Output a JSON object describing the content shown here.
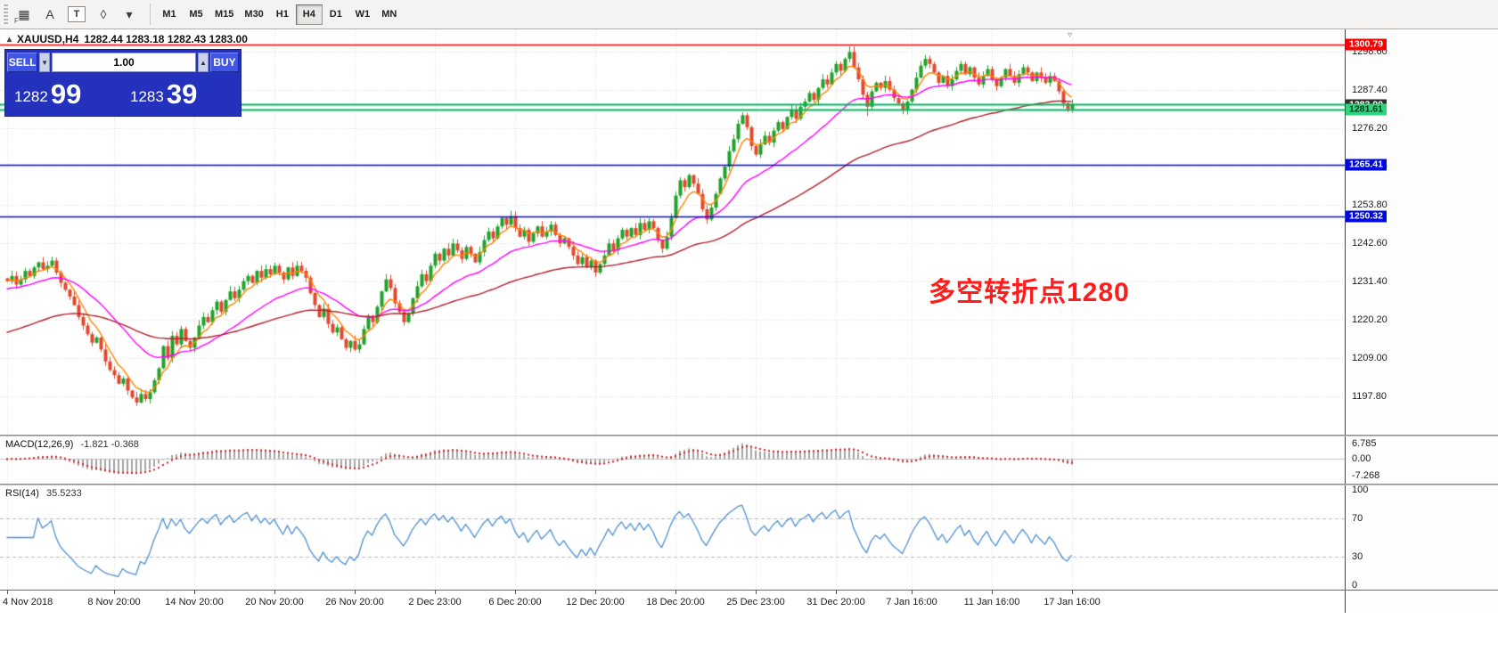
{
  "toolbar": {
    "icons": [
      {
        "name": "fibonacci-tool-icon",
        "glyph": "▦",
        "sub": "F"
      },
      {
        "name": "text-label-tool-icon",
        "glyph": "A"
      },
      {
        "name": "text-tool-icon",
        "glyph": "T",
        "boxed": true
      },
      {
        "name": "shapes-tool-icon",
        "glyph": "◊"
      },
      {
        "name": "shapes-menu-caret-icon",
        "glyph": "▾"
      }
    ],
    "timeframes": [
      "M1",
      "M5",
      "M15",
      "M30",
      "H1",
      "H4",
      "D1",
      "W1",
      "MN"
    ],
    "active_timeframe": "H4"
  },
  "header": {
    "symbol": "XAUUSD,H4",
    "quote": "1282.44 1283.18 1282.43 1283.00"
  },
  "trade_panel": {
    "sell_label": "SELL",
    "buy_label": "BUY",
    "volume": "1.00",
    "sell_big": "1282",
    "sell_large": "99",
    "buy_big": "1283",
    "buy_large": "39"
  },
  "annotation": {
    "text": "多空转折点1280",
    "color": "#ff1c1c"
  },
  "chart_data": {
    "type": "candlestick",
    "title": "XAUUSD,H4",
    "timeframe": "H4",
    "up_color": "#1fa32a",
    "down_color": "#e0482e",
    "y_ticks": [
      "1298.60",
      "1287.40",
      "1276.20",
      "1265.00",
      "1253.80",
      "1242.60",
      "1231.40",
      "1220.20",
      "1209.00",
      "1197.80"
    ],
    "closes": [
      1231.5,
      1233.0,
      1230.5,
      1232.0,
      1234.5,
      1233.0,
      1235.5,
      1237.0,
      1235.0,
      1236.0,
      1237.5,
      1234.0,
      1231.0,
      1229.0,
      1227.0,
      1224.5,
      1221.0,
      1218.5,
      1216.0,
      1213.5,
      1215.0,
      1211.5,
      1208.0,
      1205.5,
      1204.0,
      1201.5,
      1203.0,
      1199.5,
      1197.5,
      1196.0,
      1198.5,
      1197.0,
      1199.0,
      1202.5,
      1206.0,
      1212.5,
      1209.0,
      1215.5,
      1213.0,
      1217.5,
      1214.0,
      1212.0,
      1215.0,
      1218.5,
      1221.0,
      1219.5,
      1223.0,
      1225.5,
      1222.5,
      1226.0,
      1228.5,
      1226.5,
      1229.0,
      1231.5,
      1233.0,
      1231.0,
      1234.5,
      1232.5,
      1235.0,
      1233.5,
      1236.0,
      1234.0,
      1232.0,
      1235.5,
      1233.0,
      1236.0,
      1234.5,
      1232.5,
      1228.0,
      1224.5,
      1221.0,
      1223.5,
      1219.0,
      1216.5,
      1218.0,
      1214.5,
      1212.0,
      1214.0,
      1211.5,
      1213.0,
      1217.5,
      1221.0,
      1219.5,
      1224.0,
      1228.5,
      1232.0,
      1229.5,
      1225.0,
      1222.5,
      1219.5,
      1222.0,
      1226.5,
      1230.0,
      1233.5,
      1231.5,
      1236.0,
      1239.5,
      1237.5,
      1241.0,
      1239.0,
      1242.5,
      1240.5,
      1238.0,
      1241.5,
      1239.5,
      1237.0,
      1240.0,
      1243.5,
      1246.0,
      1244.0,
      1247.5,
      1250.0,
      1248.0,
      1250.5,
      1247.0,
      1244.5,
      1246.5,
      1243.0,
      1245.5,
      1247.5,
      1244.5,
      1246.0,
      1248.0,
      1245.0,
      1242.5,
      1244.0,
      1241.5,
      1239.0,
      1236.5,
      1238.5,
      1235.5,
      1237.5,
      1234.0,
      1236.5,
      1239.0,
      1242.5,
      1240.5,
      1244.0,
      1246.5,
      1244.5,
      1247.0,
      1245.0,
      1248.5,
      1246.5,
      1249.0,
      1247.0,
      1243.5,
      1241.0,
      1244.5,
      1250.0,
      1256.5,
      1261.0,
      1259.0,
      1262.5,
      1260.0,
      1257.0,
      1252.5,
      1249.5,
      1253.0,
      1257.0,
      1261.5,
      1265.0,
      1269.5,
      1273.0,
      1277.5,
      1280.0,
      1276.5,
      1271.0,
      1268.5,
      1271.5,
      1274.0,
      1272.0,
      1275.5,
      1278.0,
      1276.0,
      1279.5,
      1281.5,
      1279.0,
      1282.5,
      1284.0,
      1286.5,
      1284.5,
      1288.0,
      1290.5,
      1289.0,
      1292.5,
      1295.0,
      1293.0,
      1296.5,
      1298.5,
      1294.0,
      1290.5,
      1286.0,
      1282.5,
      1287.0,
      1289.5,
      1288.0,
      1290.0,
      1287.5,
      1285.0,
      1283.5,
      1281.5,
      1284.0,
      1287.5,
      1291.0,
      1294.5,
      1296.5,
      1295.0,
      1292.5,
      1289.5,
      1291.5,
      1288.5,
      1290.5,
      1293.0,
      1295.0,
      1292.0,
      1294.0,
      1291.0,
      1289.0,
      1291.5,
      1293.5,
      1290.5,
      1288.5,
      1291.0,
      1293.5,
      1291.5,
      1289.5,
      1292.0,
      1294.0,
      1292.5,
      1290.0,
      1292.5,
      1291.0,
      1289.5,
      1291.5,
      1290.0,
      1287.0,
      1283.5,
      1281.8,
      1283.0
    ],
    "wick_overrides": {
      "29": {
        "l": 1195.0
      },
      "189": {
        "h": 1300.2
      },
      "193": {
        "l": 1279.8
      },
      "201": {
        "l": 1280.3
      },
      "238": {
        "l": 1280.9
      }
    },
    "moving_averages": [
      {
        "period": 6,
        "color": "#ff8400",
        "seed": 1231.5
      },
      {
        "period": 24,
        "color": "#ff00ff",
        "seed": 1229.0
      },
      {
        "period": 70,
        "color": "#b01e28",
        "seed": 1216.0
      }
    ],
    "x_labels": [
      {
        "label": "4 Nov 2018",
        "i": 0
      },
      {
        "label": "8 Nov 20:00",
        "i": 24
      },
      {
        "label": "14 Nov 20:00",
        "i": 42
      },
      {
        "label": "20 Nov 20:00",
        "i": 60
      },
      {
        "label": "26 Nov 20:00",
        "i": 78
      },
      {
        "label": "2 Dec 23:00",
        "i": 96
      },
      {
        "label": "6 Dec 20:00",
        "i": 114
      },
      {
        "label": "12 Dec 20:00",
        "i": 132
      },
      {
        "label": "18 Dec 20:00",
        "i": 150
      },
      {
        "label": "25 Dec 23:00",
        "i": 168
      },
      {
        "label": "31 Dec 20:00",
        "i": 186
      },
      {
        "label": "7 Jan 16:00",
        "i": 203
      },
      {
        "label": "11 Jan 16:00",
        "i": 221
      },
      {
        "label": "17 Jan 16:00",
        "i": 239
      }
    ],
    "hlines": [
      {
        "price": 1300.79,
        "color": "#ff0000",
        "w": 1.5,
        "tag": "1300.79",
        "tag_bg": "#ff0000",
        "tag_fg": "#ffffff"
      },
      {
        "price": 1283.2,
        "color": "#00b85e",
        "w": 2,
        "tag": "",
        "tag_bg": "",
        "tag_fg": ""
      },
      {
        "price": 1283.0,
        "color": "",
        "w": 0,
        "tag": "1283.00",
        "tag_bg": "#2e2e2e",
        "tag_fg": "#ffffff"
      },
      {
        "price": 1281.61,
        "color": "#00b85e",
        "w": 2,
        "tag": "1281.61",
        "tag_bg": "#2ed47e",
        "tag_fg": "#07331a"
      },
      {
        "price": 1265.41,
        "color": "#0008e0",
        "w": 1.5,
        "tag": "1265.41",
        "tag_bg": "#0008e0",
        "tag_fg": "#ffffff"
      },
      {
        "price": 1250.32,
        "color": "#0008e0",
        "w": 1.5,
        "tag": "1250.32",
        "tag_bg": "#0008e0",
        "tag_fg": "#ffffff"
      }
    ],
    "indicators": {
      "macd": {
        "label": "MACD(12,26,9)",
        "value_text": "-1.821 -0.368",
        "fast": 12,
        "slow": 26,
        "signal": 9,
        "axis": [
          "6.785",
          "0.00",
          "-7.268"
        ],
        "hist_color": "#a3a3a3",
        "signal_color": "#d42020"
      },
      "rsi": {
        "label": "RSI(14)",
        "value_text": "35.5233",
        "period": 14,
        "levels": [
          70,
          30
        ],
        "axis": [
          "100",
          "70",
          "30",
          "0"
        ],
        "line_color": "#4e8fd0"
      }
    }
  }
}
